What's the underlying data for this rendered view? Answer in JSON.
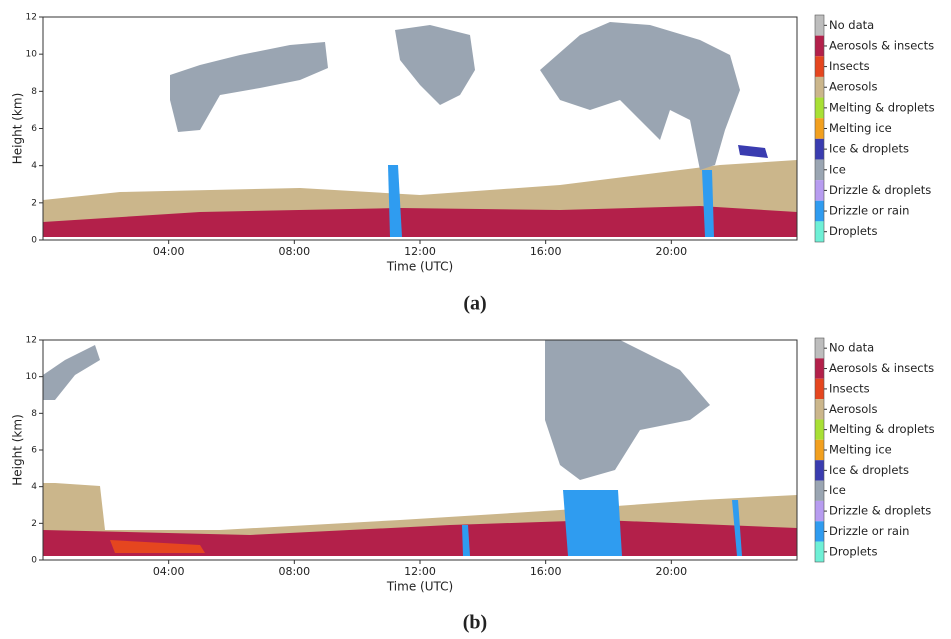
{
  "chart_data": [
    {
      "type": "classification",
      "caption": "(a)",
      "xlabel": "Time (UTC)",
      "ylabel": "Height (km)",
      "xlim": [
        0,
        24
      ],
      "xticks": [
        {
          "value": 4,
          "label": "04:00"
        },
        {
          "value": 8,
          "label": "08:00"
        },
        {
          "value": 12,
          "label": "12:00"
        },
        {
          "value": 16,
          "label": "16:00"
        },
        {
          "value": 20,
          "label": "20:00"
        }
      ],
      "ylim": [
        0,
        12
      ],
      "yticks": [
        0,
        2,
        4,
        6,
        8,
        10,
        12
      ],
      "classes": [
        {
          "name": "No data",
          "color": "#bdbdbd"
        },
        {
          "name": "Aerosols & insects",
          "color": "#b3204a"
        },
        {
          "name": "Insects",
          "color": "#e5461f"
        },
        {
          "name": "Aerosols",
          "color": "#cbb68b"
        },
        {
          "name": "Melting & droplets",
          "color": "#a8e035"
        },
        {
          "name": "Melting ice",
          "color": "#f2a01f"
        },
        {
          "name": "Ice & droplets",
          "color": "#3a3cb0"
        },
        {
          "name": "Ice",
          "color": "#9aa5b2"
        },
        {
          "name": "Drizzle & droplets",
          "color": "#b79cf0"
        },
        {
          "name": "Drizzle or rain",
          "color": "#2f9cf0"
        },
        {
          "name": "Droplets",
          "color": "#6ef0d6"
        }
      ]
    },
    {
      "type": "classification",
      "caption": "(b)",
      "xlabel": "Time (UTC)",
      "ylabel": "Height (km)",
      "xlim": [
        0,
        24
      ],
      "xticks": [
        {
          "value": 4,
          "label": "04:00"
        },
        {
          "value": 8,
          "label": "08:00"
        },
        {
          "value": 12,
          "label": "12:00"
        },
        {
          "value": 16,
          "label": "16:00"
        },
        {
          "value": 20,
          "label": "20:00"
        }
      ],
      "ylim": [
        0,
        12
      ],
      "yticks": [
        0,
        2,
        4,
        6,
        8,
        10,
        12
      ],
      "classes": [
        {
          "name": "No data",
          "color": "#bdbdbd"
        },
        {
          "name": "Aerosols & insects",
          "color": "#b3204a"
        },
        {
          "name": "Insects",
          "color": "#e5461f"
        },
        {
          "name": "Aerosols",
          "color": "#cbb68b"
        },
        {
          "name": "Melting & droplets",
          "color": "#a8e035"
        },
        {
          "name": "Melting ice",
          "color": "#f2a01f"
        },
        {
          "name": "Ice & droplets",
          "color": "#3a3cb0"
        },
        {
          "name": "Ice",
          "color": "#9aa5b2"
        },
        {
          "name": "Drizzle & droplets",
          "color": "#b79cf0"
        },
        {
          "name": "Drizzle or rain",
          "color": "#2f9cf0"
        },
        {
          "name": "Droplets",
          "color": "#6ef0d6"
        }
      ]
    }
  ]
}
